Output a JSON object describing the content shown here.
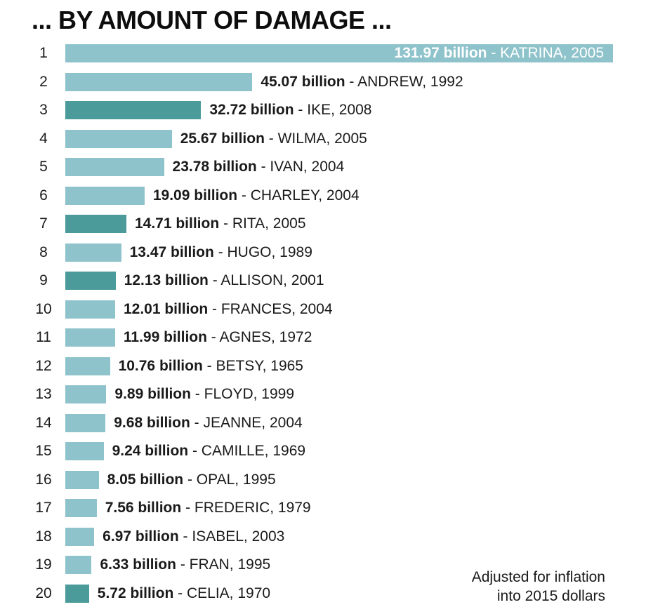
{
  "title": "... BY AMOUNT OF DAMAGE ...",
  "footnote": {
    "line1": "Adjusted for inflation",
    "line2": "into 2015 dollars"
  },
  "colors": {
    "bar_light": "#8fc3cb",
    "bar_dark": "#4a9b99",
    "text": "#1a1a1a",
    "inside_label_text": "#ffffff"
  },
  "chart_data": {
    "type": "bar",
    "orientation": "horizontal",
    "title": "... BY AMOUNT OF DAMAGE ...",
    "unit": "billion (2015 dollars)",
    "value_axis_max": 131.97,
    "grid": false,
    "legend": false,
    "bars": [
      {
        "rank": "1",
        "value": 131.97,
        "label_value": "131.97 billion",
        "label_name": "- KATRINA, 2005",
        "highlighted": false,
        "label_inside": true
      },
      {
        "rank": "2",
        "value": 45.07,
        "label_value": "45.07 billion",
        "label_name": "- ANDREW, 1992",
        "highlighted": false,
        "label_inside": false
      },
      {
        "rank": "3",
        "value": 32.72,
        "label_value": "32.72 billion",
        "label_name": "- IKE, 2008",
        "highlighted": true,
        "label_inside": false
      },
      {
        "rank": "4",
        "value": 25.67,
        "label_value": "25.67 billion",
        "label_name": "- WILMA, 2005",
        "highlighted": false,
        "label_inside": false
      },
      {
        "rank": "5",
        "value": 23.78,
        "label_value": "23.78 billion",
        "label_name": "- IVAN, 2004",
        "highlighted": false,
        "label_inside": false
      },
      {
        "rank": "6",
        "value": 19.09,
        "label_value": "19.09 billion",
        "label_name": "- CHARLEY, 2004",
        "highlighted": false,
        "label_inside": false
      },
      {
        "rank": "7",
        "value": 14.71,
        "label_value": "14.71 billion",
        "label_name": "- RITA, 2005",
        "highlighted": true,
        "label_inside": false
      },
      {
        "rank": "8",
        "value": 13.47,
        "label_value": "13.47 billion",
        "label_name": "- HUGO, 1989",
        "highlighted": false,
        "label_inside": false
      },
      {
        "rank": "9",
        "value": 12.13,
        "label_value": "12.13 billion",
        "label_name": "- ALLISON, 2001",
        "highlighted": true,
        "label_inside": false
      },
      {
        "rank": "10",
        "value": 12.01,
        "label_value": "12.01 billion",
        "label_name": "- FRANCES, 2004",
        "highlighted": false,
        "label_inside": false
      },
      {
        "rank": "11",
        "value": 11.99,
        "label_value": "11.99 billion",
        "label_name": "- AGNES, 1972",
        "highlighted": false,
        "label_inside": false
      },
      {
        "rank": "12",
        "value": 10.76,
        "label_value": "10.76 billion",
        "label_name": "- BETSY, 1965",
        "highlighted": false,
        "label_inside": false
      },
      {
        "rank": "13",
        "value": 9.89,
        "label_value": "9.89 billion",
        "label_name": "- FLOYD, 1999",
        "highlighted": false,
        "label_inside": false
      },
      {
        "rank": "14",
        "value": 9.68,
        "label_value": "9.68 billion",
        "label_name": "- JEANNE, 2004",
        "highlighted": false,
        "label_inside": false
      },
      {
        "rank": "15",
        "value": 9.24,
        "label_value": "9.24 billion",
        "label_name": "- CAMILLE, 1969",
        "highlighted": false,
        "label_inside": false
      },
      {
        "rank": "16",
        "value": 8.05,
        "label_value": "8.05 billion",
        "label_name": "- OPAL, 1995",
        "highlighted": false,
        "label_inside": false
      },
      {
        "rank": "17",
        "value": 7.56,
        "label_value": "7.56 billion",
        "label_name": "- FREDERIC, 1979",
        "highlighted": false,
        "label_inside": false
      },
      {
        "rank": "18",
        "value": 6.97,
        "label_value": "6.97 billion",
        "label_name": "- ISABEL, 2003",
        "highlighted": false,
        "label_inside": false
      },
      {
        "rank": "19",
        "value": 6.33,
        "label_value": "6.33 billion",
        "label_name": "- FRAN, 1995",
        "highlighted": false,
        "label_inside": false
      },
      {
        "rank": "20",
        "value": 5.72,
        "label_value": "5.72 billion",
        "label_name": "- CELIA, 1970",
        "highlighted": true,
        "label_inside": false
      }
    ]
  }
}
